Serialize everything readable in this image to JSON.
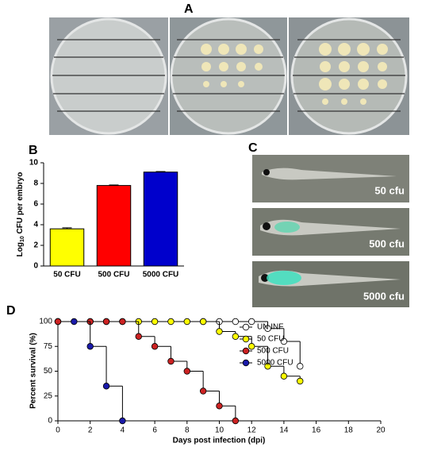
{
  "panels": [
    "A",
    "B",
    "C",
    "D"
  ],
  "fish_labels": [
    "50 cfu",
    "500 cfu",
    "5000 cfu"
  ],
  "chart_data": [
    {
      "type": "bar",
      "ylabel": [
        "Log",
        "10",
        " CFU per embryo"
      ],
      "categories": [
        "50 CFU",
        "500 CFU",
        "5000 CFU"
      ],
      "values": [
        3.6,
        7.8,
        9.1
      ],
      "errors": [
        0.1,
        0.05,
        0.05
      ],
      "colors": [
        "#ffff00",
        "#ff0000",
        "#0000cc"
      ],
      "ylim": [
        0,
        10
      ],
      "yticks": [
        0,
        2,
        4,
        6,
        8,
        10
      ]
    },
    {
      "type": "step",
      "xlabel": "Days post infection (dpi)",
      "ylabel": "Percent survival (%)",
      "xlim": [
        0,
        20
      ],
      "xticks": [
        0,
        2,
        4,
        6,
        8,
        10,
        12,
        14,
        16,
        18,
        20
      ],
      "ylim": [
        0,
        100
      ],
      "yticks": [
        0,
        25,
        50,
        75,
        100
      ],
      "series": [
        {
          "name": "UN INF",
          "color": "#ffffff",
          "x": [
            0,
            9,
            10,
            11,
            12,
            13,
            14,
            15
          ],
          "values": [
            100,
            100,
            100,
            100,
            100,
            93,
            80,
            55
          ]
        },
        {
          "name": "50 CFU",
          "color": "#ffff00",
          "x": [
            0,
            2,
            3,
            4,
            5,
            6,
            7,
            8,
            9,
            10,
            11,
            12,
            13,
            14,
            15
          ],
          "values": [
            100,
            100,
            100,
            100,
            100,
            100,
            100,
            100,
            100,
            90,
            85,
            75,
            55,
            45,
            40
          ]
        },
        {
          "name": "500 CFU",
          "color": "#cc2222",
          "x": [
            0,
            2,
            3,
            4,
            5,
            6,
            7,
            8,
            9,
            10,
            11
          ],
          "values": [
            100,
            100,
            100,
            100,
            85,
            75,
            60,
            50,
            30,
            15,
            0
          ]
        },
        {
          "name": "5000 CFU",
          "color": "#1a1aaa",
          "x": [
            1,
            2,
            3,
            4
          ],
          "values": [
            100,
            75,
            35,
            0
          ]
        }
      ]
    }
  ]
}
